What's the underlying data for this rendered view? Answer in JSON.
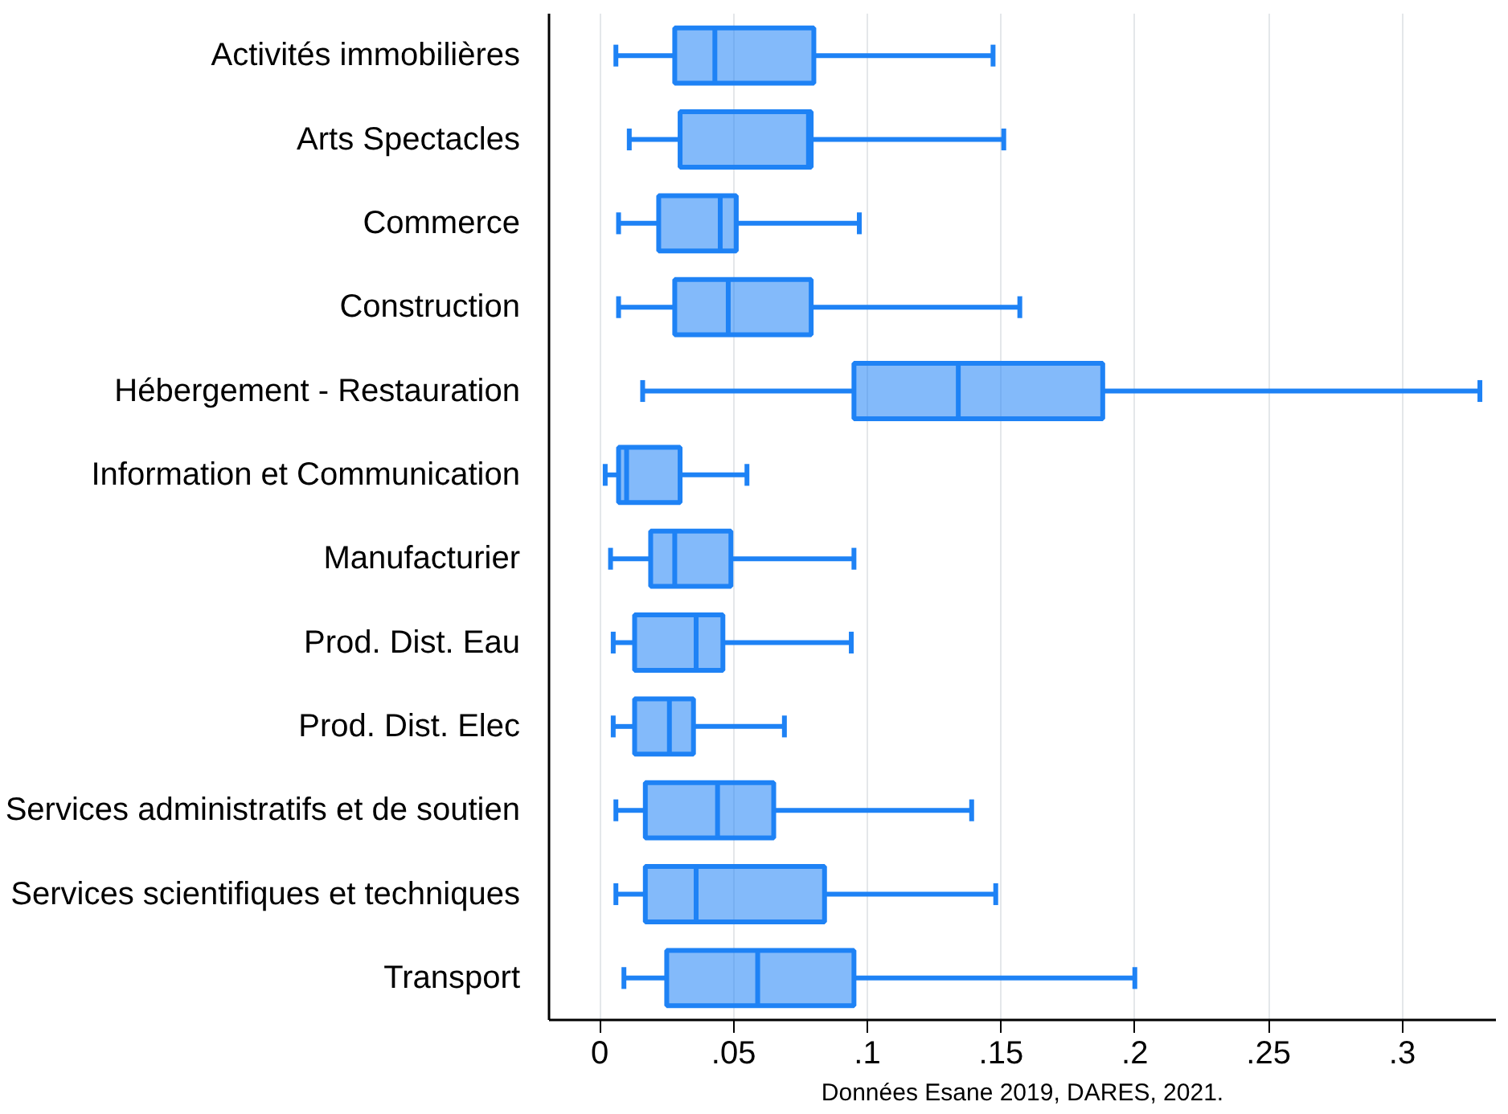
{
  "chart_data": {
    "type": "box",
    "orientation": "horizontal",
    "categories": [
      "Activités immobilières",
      "Arts Spectacles",
      "Commerce",
      "Construction",
      "Hébergement - Restauration",
      "Information et Communication",
      "Manufacturier",
      "Prod. Dist. Eau",
      "Prod. Dist. Elec",
      "Services administratifs et de soutien",
      "Services scientifiques et techniques",
      "Transport"
    ],
    "series": [
      {
        "color": "#1e82f5",
        "boxes": [
          {
            "low": 0.006,
            "q1": 0.028,
            "median": 0.043,
            "q3": 0.08,
            "high": 0.147
          },
          {
            "low": 0.011,
            "q1": 0.03,
            "median": 0.078,
            "q3": 0.079,
            "high": 0.151
          },
          {
            "low": 0.007,
            "q1": 0.022,
            "median": 0.045,
            "q3": 0.051,
            "high": 0.097
          },
          {
            "low": 0.007,
            "q1": 0.028,
            "median": 0.048,
            "q3": 0.079,
            "high": 0.157
          },
          {
            "low": 0.016,
            "q1": 0.095,
            "median": 0.134,
            "q3": 0.188,
            "high": 0.329
          },
          {
            "low": 0.002,
            "q1": 0.007,
            "median": 0.01,
            "q3": 0.03,
            "high": 0.055
          },
          {
            "low": 0.004,
            "q1": 0.019,
            "median": 0.028,
            "q3": 0.049,
            "high": 0.095
          },
          {
            "low": 0.005,
            "q1": 0.013,
            "median": 0.036,
            "q3": 0.046,
            "high": 0.094
          },
          {
            "low": 0.005,
            "q1": 0.013,
            "median": 0.026,
            "q3": 0.035,
            "high": 0.069
          },
          {
            "low": 0.006,
            "q1": 0.017,
            "median": 0.044,
            "q3": 0.065,
            "high": 0.139
          },
          {
            "low": 0.006,
            "q1": 0.017,
            "median": 0.036,
            "q3": 0.084,
            "high": 0.148
          },
          {
            "low": 0.009,
            "q1": 0.025,
            "median": 0.059,
            "q3": 0.095,
            "high": 0.2
          }
        ]
      }
    ],
    "xlim": [
      -0.019,
      0.335
    ],
    "xticks": [
      0,
      {
        "value": 0.05,
        "label": ".05"
      },
      {
        "value": 0.1,
        "label": ".1"
      },
      {
        "value": 0.15,
        "label": ".15"
      },
      {
        "value": 0.2,
        "label": ".2"
      },
      {
        "value": 0.25,
        "label": ".25"
      },
      {
        "value": 0.3,
        "label": ".3"
      }
    ],
    "grid": "x",
    "annotations": [
      "Données Esane 2019, DARES, 2021."
    ]
  }
}
